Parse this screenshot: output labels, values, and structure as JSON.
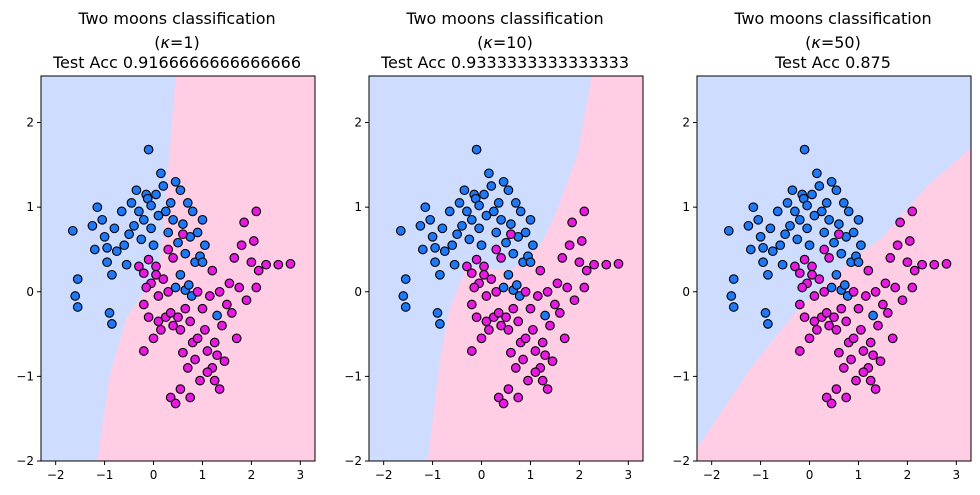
{
  "chart_data": [
    {
      "type": "scatter",
      "title_line1": "Two moons classification",
      "title_kappa_symbol": "κ",
      "title_kappa_value": "=1",
      "title_line3": "Test Acc 0.9166666666666666",
      "xlim": [
        -2.3,
        3.3
      ],
      "ylim": [
        -2,
        2.55
      ],
      "xticks": [
        -2,
        -1,
        0,
        1,
        2,
        3
      ],
      "yticks": [
        -2,
        -1,
        0,
        1,
        2
      ],
      "boundary": [
        [
          0.45,
          2.55
        ],
        [
          0.32,
          1.6
        ],
        [
          0.2,
          0.75
        ],
        [
          0.12,
          0.25
        ],
        [
          -0.55,
          -0.3
        ],
        [
          -0.9,
          -1.0
        ],
        [
          -1.15,
          -2.0
        ]
      ]
    },
    {
      "type": "scatter",
      "title_line1": "Two moons classification",
      "title_kappa_symbol": "κ",
      "title_kappa_value": "=10",
      "title_line3": "Test Acc 0.9333333333333333",
      "xlim": [
        -2.3,
        3.3
      ],
      "ylim": [
        -2,
        2.55
      ],
      "xticks": [
        -2,
        -1,
        0,
        1,
        2,
        3
      ],
      "yticks": [
        -2,
        -1,
        0,
        1,
        2
      ],
      "boundary": [
        [
          2.25,
          2.55
        ],
        [
          1.95,
          1.6
        ],
        [
          1.5,
          0.9
        ],
        [
          1.2,
          0.55
        ],
        [
          0.6,
          0.25
        ],
        [
          -0.3,
          0.3
        ],
        [
          -0.65,
          -0.2
        ],
        [
          -0.85,
          -0.8
        ],
        [
          -1.1,
          -2.0
        ]
      ]
    },
    {
      "type": "scatter",
      "title_line1": "Two moons classification",
      "title_kappa_symbol": "κ",
      "title_kappa_value": "=50",
      "title_line3": "Test Acc 0.875",
      "xlim": [
        -2.3,
        3.3
      ],
      "ylim": [
        -2,
        2.55
      ],
      "xticks": [
        -2,
        -1,
        0,
        1,
        2,
        3
      ],
      "yticks": [
        -2,
        -1,
        0,
        1,
        2
      ],
      "boundary": [
        [
          -2.3,
          -1.85
        ],
        [
          -1.2,
          -0.9
        ],
        [
          -0.3,
          -0.25
        ],
        [
          0.5,
          0.2
        ],
        [
          1.5,
          0.65
        ],
        [
          2.4,
          1.25
        ],
        [
          3.3,
          1.7
        ]
      ]
    }
  ],
  "points": {
    "class0": [
      [
        -1.65,
        0.72
      ],
      [
        -1.6,
        -0.05
      ],
      [
        -1.55,
        0.15
      ],
      [
        -1.55,
        -0.18
      ],
      [
        -1.25,
        0.78
      ],
      [
        -1.2,
        0.5
      ],
      [
        -1.15,
        1.0
      ],
      [
        -1.05,
        0.85
      ],
      [
        -1.0,
        0.65
      ],
      [
        -0.95,
        0.52
      ],
      [
        -0.95,
        0.35
      ],
      [
        -0.9,
        -0.25
      ],
      [
        -0.85,
        -0.38
      ],
      [
        -0.85,
        0.2
      ],
      [
        -0.8,
        0.75
      ],
      [
        -0.75,
        0.48
      ],
      [
        -0.65,
        0.95
      ],
      [
        -0.6,
        0.55
      ],
      [
        -0.55,
        0.32
      ],
      [
        -0.5,
        0.68
      ],
      [
        -0.45,
        1.05
      ],
      [
        -0.4,
        0.78
      ],
      [
        -0.35,
        1.2
      ],
      [
        -0.3,
        0.95
      ],
      [
        -0.25,
        0.62
      ],
      [
        -0.2,
        0.85
      ],
      [
        -0.15,
        1.15
      ],
      [
        -0.12,
        1.1
      ],
      [
        -0.05,
        1.02
      ],
      [
        -0.05,
        0.75
      ],
      [
        0.0,
        0.55
      ],
      [
        0.05,
        1.15
      ],
      [
        0.1,
        0.9
      ],
      [
        0.15,
        1.4
      ],
      [
        0.2,
        1.25
      ],
      [
        0.25,
        0.95
      ],
      [
        0.3,
        0.7
      ],
      [
        0.35,
        1.05
      ],
      [
        0.4,
        0.85
      ],
      [
        0.45,
        1.3
      ],
      [
        0.5,
        0.58
      ],
      [
        0.55,
        1.2
      ],
      [
        0.6,
        0.8
      ],
      [
        0.65,
        0.45
      ],
      [
        0.7,
        1.05
      ],
      [
        0.75,
        0.65
      ],
      [
        0.8,
        0.95
      ],
      [
        0.85,
        0.35
      ],
      [
        0.9,
        0.7
      ],
      [
        0.95,
        0.42
      ],
      [
        1.0,
        0.85
      ],
      [
        1.05,
        0.55
      ],
      [
        1.0,
        0.35
      ],
      [
        -0.1,
        1.68
      ],
      [
        0.65,
        0.02
      ],
      [
        0.72,
        0.08
      ],
      [
        0.78,
        -0.05
      ],
      [
        0.45,
        0.05
      ],
      [
        0.55,
        0.2
      ],
      [
        1.3,
        -0.28
      ]
    ],
    "class1": [
      [
        -0.3,
        0.3
      ],
      [
        -0.2,
        0.22
      ],
      [
        -0.1,
        0.38
      ],
      [
        -0.05,
        0.1
      ],
      [
        0.05,
        0.3
      ],
      [
        0.1,
        -0.05
      ],
      [
        0.2,
        0.15
      ],
      [
        0.3,
        0.0
      ],
      [
        0.1,
        -0.35
      ],
      [
        -0.2,
        -0.15
      ],
      [
        -0.1,
        -0.3
      ],
      [
        0.0,
        -0.55
      ],
      [
        -0.2,
        -0.7
      ],
      [
        0.15,
        -0.45
      ],
      [
        0.25,
        -0.3
      ],
      [
        0.35,
        -0.25
      ],
      [
        0.4,
        -0.4
      ],
      [
        0.5,
        -0.3
      ],
      [
        0.55,
        -0.45
      ],
      [
        0.6,
        -0.72
      ],
      [
        0.65,
        -0.2
      ],
      [
        0.75,
        -0.35
      ],
      [
        0.8,
        -0.6
      ],
      [
        0.85,
        -0.8
      ],
      [
        0.9,
        -0.55
      ],
      [
        1.0,
        -0.2
      ],
      [
        1.05,
        -0.45
      ],
      [
        1.1,
        -0.7
      ],
      [
        1.15,
        -0.05
      ],
      [
        1.2,
        -0.9
      ],
      [
        1.25,
        -0.6
      ],
      [
        1.3,
        -0.75
      ],
      [
        1.35,
        0.0
      ],
      [
        1.4,
        -0.4
      ],
      [
        1.45,
        -0.82
      ],
      [
        1.5,
        -0.15
      ],
      [
        1.55,
        0.1
      ],
      [
        1.6,
        -0.25
      ],
      [
        1.65,
        0.4
      ],
      [
        1.7,
        -0.55
      ],
      [
        1.75,
        0.05
      ],
      [
        1.8,
        0.55
      ],
      [
        1.85,
        0.82
      ],
      [
        1.9,
        -0.1
      ],
      [
        2.0,
        0.35
      ],
      [
        2.05,
        0.6
      ],
      [
        2.1,
        0.95
      ],
      [
        2.15,
        0.25
      ],
      [
        2.3,
        0.32
      ],
      [
        2.55,
        0.32
      ],
      [
        2.8,
        0.33
      ],
      [
        0.4,
        0.4
      ],
      [
        0.6,
        0.68
      ],
      [
        0.35,
        -1.25
      ],
      [
        0.45,
        -1.32
      ],
      [
        0.55,
        -1.15
      ],
      [
        0.75,
        -1.25
      ],
      [
        0.95,
        -1.05
      ],
      [
        1.25,
        -1.05
      ],
      [
        1.35,
        -1.15
      ],
      [
        0.05,
        0.2
      ],
      [
        -0.15,
        0.05
      ],
      [
        0.7,
        -0.9
      ],
      [
        1.1,
        -0.95
      ],
      [
        2.1,
        0.05
      ],
      [
        0.9,
        0.0
      ],
      [
        1.2,
        0.25
      ],
      [
        0.3,
        0.5
      ]
    ]
  },
  "colors": {
    "region0": "#cddcff",
    "region1": "#ffcde4",
    "class0": "#1f78f5",
    "class1": "#e61ae0",
    "edge": "#000000"
  }
}
